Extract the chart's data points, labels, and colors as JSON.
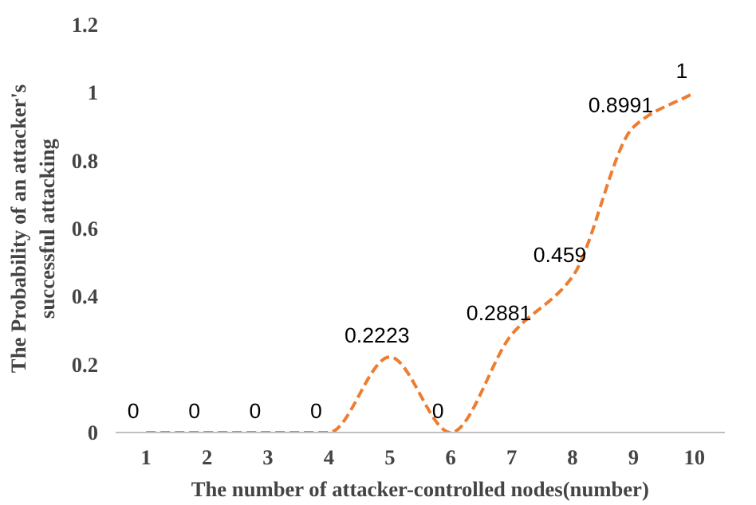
{
  "chart_data": {
    "type": "line",
    "xlabel": "The number of attacker-controlled nodes(number)",
    "ylabel": "The Probability of an attacker's successful attacking",
    "categories": [
      "1",
      "2",
      "3",
      "4",
      "5",
      "6",
      "7",
      "8",
      "9",
      "10"
    ],
    "series": [
      {
        "color": "#ed7d31",
        "values": [
          0,
          0,
          0,
          0,
          0.2223,
          0,
          0.2881,
          0.459,
          0.8991,
          1
        ]
      }
    ],
    "ylim": [
      0,
      1.2
    ],
    "yticks": [
      0,
      {
        "value": 0.2,
        "label": "0.2"
      },
      {
        "value": 0.4,
        "label": "0.4"
      },
      {
        "value": 0.6,
        "label": "0.6"
      },
      {
        "value": 0.8,
        "label": "0.8"
      },
      1,
      {
        "value": 1.2,
        "label": "1.2"
      }
    ],
    "data_labels": true,
    "grid": false,
    "marker": "none",
    "line_style": "dashed"
  }
}
